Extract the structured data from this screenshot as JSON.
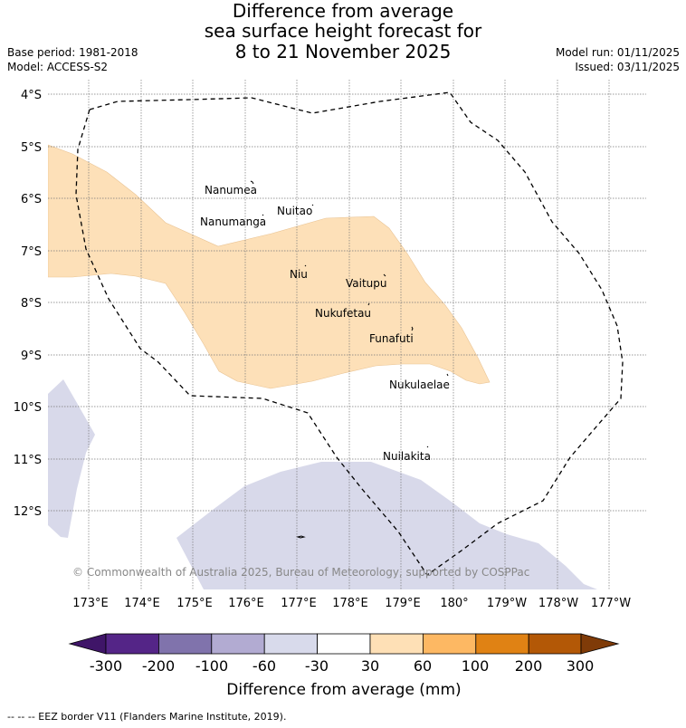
{
  "title": {
    "line1": "Difference from average",
    "line2": "sea surface height forecast for",
    "line3": "8 to 21 November 2025"
  },
  "meta": {
    "base_period": "Base period: 1981-2018",
    "model": "Model: ACCESS-S2",
    "model_run": "Model run: 01/11/2025",
    "issued": "Issued: 03/11/2025"
  },
  "map": {
    "lat_labels": [
      "4°S",
      "5°S",
      "6°S",
      "7°S",
      "8°S",
      "9°S",
      "10°S",
      "11°S",
      "12°S"
    ],
    "lon_labels": [
      "173°E",
      "174°E",
      "175°E",
      "176°E",
      "177°E",
      "178°E",
      "179°E",
      "180°",
      "179°W",
      "178°W",
      "177°W"
    ],
    "places": [
      {
        "name": "Nanumea"
      },
      {
        "name": "Nuitao"
      },
      {
        "name": "Nanumanga"
      },
      {
        "name": "Niu"
      },
      {
        "name": "Vaitupu"
      },
      {
        "name": "Nukufetau"
      },
      {
        "name": "Funafuti"
      },
      {
        "name": "Nukulaelae"
      },
      {
        "name": "Nuilakita"
      }
    ],
    "copyright": "© Commonwealth of Australia 2025, Bureau of Meteorology, supported by COSPPac",
    "positive_fill": "#fde0b8",
    "negative_fill": "#d8d9ea"
  },
  "colorbar": {
    "ticks": [
      "-300",
      "-200",
      "-100",
      "-60",
      "-30",
      "30",
      "60",
      "100",
      "200",
      "300"
    ],
    "colors": [
      "#3f1568",
      "#542587",
      "#8073ac",
      "#b2abd2",
      "#d8daeb",
      "#ffffff",
      "#fee0b6",
      "#fdb863",
      "#e08214",
      "#b35806",
      "#7f3b08"
    ],
    "label": "Difference from average (mm)"
  },
  "footer": "-- -- -- EEZ border V11 (Flanders Marine Institute, 2019)."
}
